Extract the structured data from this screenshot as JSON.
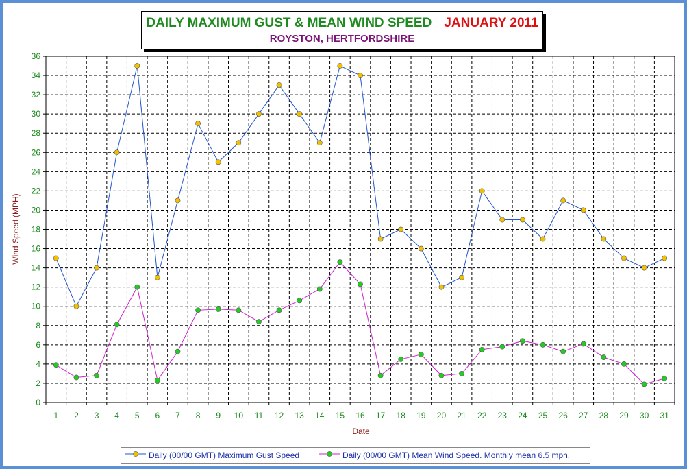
{
  "title": {
    "main": "DAILY MAXIMUM GUST & MEAN WIND SPEED",
    "month": "JANUARY 2011",
    "subtitle": "ROYSTON, HERTFORDSHIRE"
  },
  "colors": {
    "gust_line": "#2255cc",
    "mean_line": "#cc22cc",
    "gust_marker": "#f2c200",
    "mean_marker": "#22cc22",
    "axis_text": "#1a8a1a",
    "axis_label": "#8b1a1a"
  },
  "chart_data": {
    "type": "line",
    "title": "DAILY MAXIMUM GUST & MEAN WIND SPEED",
    "xlabel": "Date",
    "ylabel": "Wind Speed (MPH)",
    "ylim": [
      0,
      36
    ],
    "ytick_step": 2,
    "grid": true,
    "legend_position": "bottom",
    "x": [
      1,
      2,
      3,
      4,
      5,
      6,
      7,
      8,
      9,
      10,
      11,
      12,
      13,
      14,
      15,
      16,
      17,
      18,
      19,
      20,
      21,
      22,
      23,
      24,
      25,
      26,
      27,
      28,
      29,
      30,
      31
    ],
    "series": [
      {
        "name": "Daily (00/00 GMT) Maximum Gust Speed",
        "values": [
          15,
          10,
          14,
          26,
          35,
          13,
          21,
          29,
          25,
          27,
          30,
          33,
          30,
          27,
          35,
          34,
          17,
          18,
          16,
          12,
          13,
          22,
          19,
          19,
          17,
          21,
          20,
          17,
          15,
          14,
          15
        ]
      },
      {
        "name": "Daily (00/00 GMT) Mean Wind Speed. Monthly mean 6.5 mph.",
        "values": [
          3.9,
          2.6,
          2.8,
          8.1,
          12.0,
          2.3,
          5.3,
          9.6,
          9.7,
          9.6,
          8.4,
          9.6,
          10.6,
          11.8,
          14.6,
          12.3,
          2.8,
          4.5,
          5.0,
          2.8,
          3.0,
          5.5,
          5.8,
          6.4,
          6.0,
          5.3,
          6.1,
          4.7,
          4.0,
          1.9,
          2.5
        ]
      }
    ]
  }
}
